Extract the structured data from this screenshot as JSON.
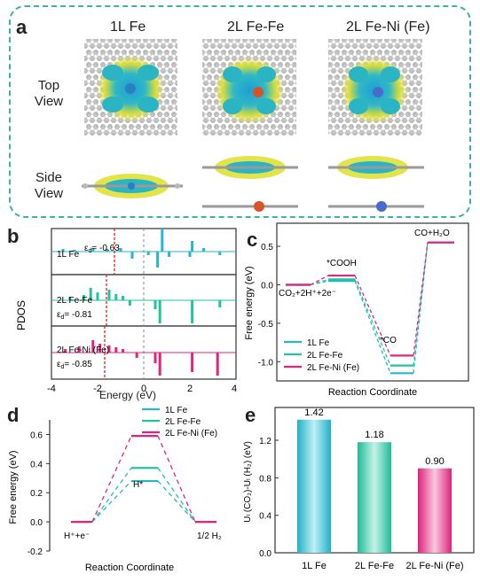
{
  "panel_a": {
    "letter": "a",
    "columns": [
      "1L Fe",
      "2L Fe-Fe",
      "2L Fe-Ni (Fe)"
    ],
    "row_top": [
      "Top",
      "View"
    ],
    "row_side": [
      "Side",
      "View"
    ]
  },
  "panel_b": {
    "letter": "b",
    "ylabel": "PDOS",
    "xlabel": "Energy (eV)",
    "xticks": [
      "-4",
      "-2",
      "0",
      "2",
      "4"
    ],
    "subpanels": [
      {
        "label": "1L Fe",
        "ed_label": "ε",
        "ed_sub": "d",
        "ed_value": "= -0.63",
        "color": "#27b6cc",
        "ed": -0.63
      },
      {
        "label": "2L Fe-Fe",
        "ed_label": "ε",
        "ed_sub": "d",
        "ed_value": "= -0.81",
        "color": "#22c4a0",
        "ed": -0.81
      },
      {
        "label": "2L Fe-Ni (Fe)",
        "ed_label": "ε",
        "ed_sub": "d",
        "ed_value": "= -0.85",
        "color": "#e02580",
        "ed": -0.85
      }
    ]
  },
  "panel_c": {
    "letter": "c",
    "ylabel": "Free energy (eV)",
    "xlabel": "Reaction Coordinate",
    "yticks": [
      "0.5",
      "0.0",
      "-0.5",
      "-1.0"
    ],
    "state_labels": {
      "s0": "CO₂+2H⁺+2e⁻",
      "s1": "*COOH",
      "s2": "*CO",
      "s3": "CO+H₂O"
    },
    "legend": [
      "1L Fe",
      "2L Fe-Fe",
      "2L Fe-Ni (Fe)"
    ]
  },
  "panel_d": {
    "letter": "d",
    "ylabel": "Free energy (eV)",
    "xlabel": "Reaction Coordinate",
    "yticks": [
      "0.6",
      "0.4",
      "0.2",
      "0.0",
      "-0.2"
    ],
    "state_labels": {
      "s0": "H⁺+e⁻",
      "s1": "H*",
      "s2": "1/2 H₂"
    },
    "legend": [
      "1L Fe",
      "2L Fe-Fe",
      "2L Fe-Ni (Fe)"
    ]
  },
  "panel_e": {
    "letter": "e",
    "ylabel": "Uₗ (CO₂)-Uₗ (H₂) (eV)",
    "yticks": [
      "1.2",
      "0.8",
      "0.4",
      "0.0"
    ]
  },
  "colors": {
    "fe": "#27b6cc",
    "fefe": "#22c4a0",
    "feni": "#e02580"
  },
  "chart_data": [
    {
      "type": "line",
      "panel": "c",
      "x": [
        0,
        1,
        2,
        3
      ],
      "series": [
        {
          "name": "1L Fe",
          "values": [
            0.0,
            0.05,
            -1.15,
            0.55
          ]
        },
        {
          "name": "2L Fe-Fe",
          "values": [
            0.0,
            0.07,
            -1.05,
            0.55
          ]
        },
        {
          "name": "2L Fe-Ni (Fe)",
          "values": [
            0.0,
            0.12,
            -0.92,
            0.55
          ]
        }
      ],
      "ylim": [
        -1.25,
        0.8
      ],
      "xlabel": "Reaction Coordinate",
      "ylabel": "Free energy (eV)"
    },
    {
      "type": "line",
      "panel": "d",
      "x": [
        0,
        1,
        2
      ],
      "series": [
        {
          "name": "1L Fe",
          "values": [
            0.0,
            0.28,
            0.0
          ]
        },
        {
          "name": "2L Fe-Fe",
          "values": [
            0.0,
            0.37,
            0.0
          ]
        },
        {
          "name": "2L Fe-Ni (Fe)",
          "values": [
            0.0,
            0.59,
            0.0
          ]
        }
      ],
      "ylim": [
        -0.2,
        0.7
      ],
      "xlabel": "Reaction Coordinate",
      "ylabel": "Free energy (eV)"
    },
    {
      "type": "bar",
      "panel": "e",
      "categories": [
        "1L Fe",
        "2L Fe-Fe",
        "2L Fe-Ni (Fe)"
      ],
      "values": [
        1.42,
        1.18,
        0.9
      ],
      "data_labels": [
        "1.42",
        "1.18",
        "0.90"
      ],
      "ylim": [
        0.0,
        1.55
      ]
    }
  ]
}
